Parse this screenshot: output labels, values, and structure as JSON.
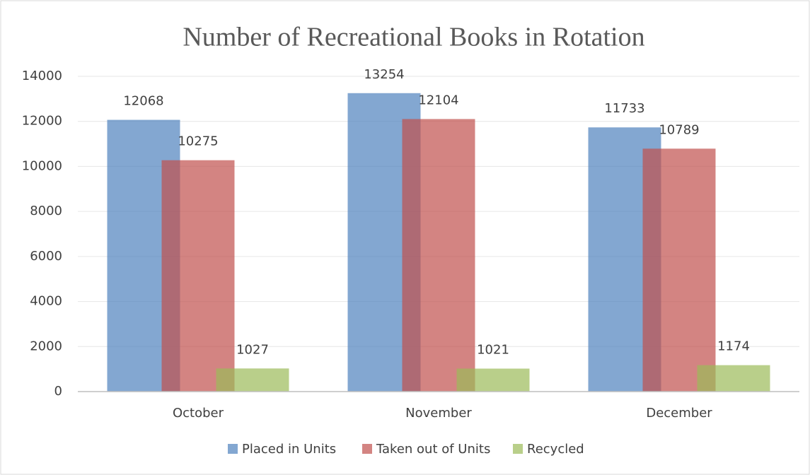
{
  "chart_data": {
    "type": "bar",
    "title": "Number of Recreational Books in Rotation",
    "categories": [
      "October",
      "November",
      "December"
    ],
    "series": [
      {
        "name": "Placed in Units",
        "color": "#4f81bd",
        "values": [
          12068,
          13254,
          11733
        ]
      },
      {
        "name": "Taken out of Units",
        "color": "#c0504d",
        "values": [
          10275,
          12104,
          10789
        ]
      },
      {
        "name": "Recycled",
        "color": "#9bbb59",
        "values": [
          1027,
          1021,
          1174
        ]
      }
    ],
    "ylim": [
      0,
      14000
    ],
    "yticks": [
      0,
      2000,
      4000,
      6000,
      8000,
      10000,
      12000,
      14000
    ],
    "grid": true,
    "legend": "bottom"
  }
}
